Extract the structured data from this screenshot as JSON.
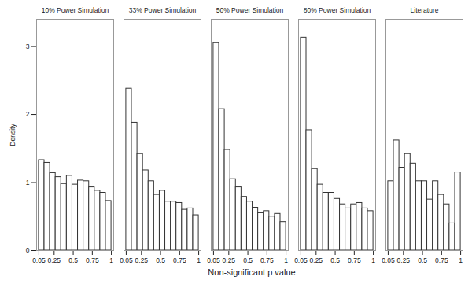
{
  "chart_data": {
    "type": "histogram",
    "x_label": "Non-significant p value",
    "y_label": "Density",
    "bins": [
      0.05,
      0.1231,
      0.1962,
      0.2692,
      0.3423,
      0.4154,
      0.4885,
      0.5615,
      0.6346,
      0.7077,
      0.7808,
      0.8538,
      0.9269,
      1
    ],
    "series": [
      {
        "name": "10% Power Simulation",
        "values": [
          1.33,
          1.29,
          1.14,
          1.08,
          0.98,
          1.1,
          0.97,
          1.03,
          1.02,
          0.93,
          0.88,
          0.85,
          0.73
        ]
      },
      {
        "name": "33% Power Simulation",
        "values": [
          2.38,
          1.88,
          1.42,
          1.18,
          1.02,
          0.82,
          0.88,
          0.72,
          0.72,
          0.7,
          0.6,
          0.62,
          0.52
        ]
      },
      {
        "name": "50% Power Simulation",
        "values": [
          3.05,
          2.08,
          1.48,
          1.05,
          0.93,
          0.79,
          0.72,
          0.63,
          0.55,
          0.58,
          0.5,
          0.54,
          0.42
        ]
      },
      {
        "name": "80% Power Simulation",
        "values": [
          3.13,
          1.77,
          1.2,
          0.97,
          0.85,
          0.85,
          0.76,
          0.68,
          0.62,
          0.68,
          0.7,
          0.62,
          0.58
        ]
      },
      {
        "name": "Literature",
        "values": [
          1.02,
          1.62,
          1.22,
          1.42,
          1.28,
          1.02,
          1.02,
          0.75,
          1.02,
          0.82,
          0.68,
          0.4,
          1.15
        ]
      }
    ],
    "color": "#333333",
    "xlim": [
      0.02,
      1.03
    ],
    "xticks": [
      0.05,
      0.25,
      0.5,
      0.75,
      1
    ],
    "ylim": [
      0,
      3.4
    ],
    "yticks": [
      0,
      1,
      2,
      3
    ],
    "grid": false
  }
}
